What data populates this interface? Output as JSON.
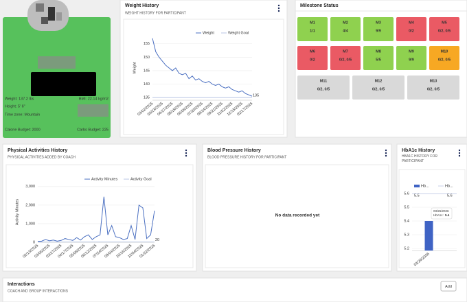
{
  "profile": {
    "weight": "Weight: 137.2 lbs",
    "bmi": "BMI: 22.14 kg/m2",
    "height": "Height: 5' 6\"",
    "timezone": "Time zone: Mountain",
    "calorie_budget": "Calorie Budget: 2000",
    "carbs_budget": "Carbs Budget: 225"
  },
  "milestones": {
    "title": "Milestone Status",
    "items": [
      {
        "name": "M1",
        "value": "1/1",
        "color": "#8fd14f"
      },
      {
        "name": "M2",
        "value": "4/4",
        "color": "#8fd14f"
      },
      {
        "name": "M3",
        "value": "9/9",
        "color": "#8fd14f"
      },
      {
        "name": "M4",
        "value": "0/2",
        "color": "#ea5a64"
      },
      {
        "name": "M5",
        "value": "0/2, 0/5",
        "color": "#ea5a64"
      },
      {
        "name": "M6",
        "value": "0/2",
        "color": "#ea5a64"
      },
      {
        "name": "M7",
        "value": "0/2, 0/5",
        "color": "#ea5a64"
      },
      {
        "name": "M8",
        "value": "5/5",
        "color": "#8fd14f"
      },
      {
        "name": "M9",
        "value": "9/9",
        "color": "#8fd14f"
      },
      {
        "name": "M10",
        "value": "0/2, 0/5",
        "color": "#f7a823"
      },
      {
        "name": "M11",
        "value": "0/2, 0/5",
        "color": "#d9d9d9"
      },
      {
        "name": "M12",
        "value": "0/2, 0/5",
        "color": "#d9d9d9"
      },
      {
        "name": "M13",
        "value": "0/2, 0/5",
        "color": "#d9d9d9"
      }
    ]
  },
  "blood_pressure": {
    "title": "Blood Pressure History",
    "subtitle": "BLOOD PRESSURE HISTORY FOR PARTICIPANT",
    "empty_message": "No data recorded yet"
  },
  "interactions": {
    "title": "Interactions",
    "subtitle": "COACH AND GROUP INTERACTIONS",
    "button": "Add"
  },
  "chart_data": [
    {
      "type": "line",
      "title": "Weight History",
      "subtitle": "WEIGHT HISTORY FOR PARTICIPANT",
      "ylabel": "Weight",
      "categories": [
        "03/02/2025",
        null,
        null,
        "03/23/2025",
        null,
        null,
        "04/27/2025",
        null,
        null,
        "05/18/2025",
        null,
        null,
        "06/08/2025",
        null,
        null,
        "07/20/2025",
        null,
        null,
        "08/24/2025",
        null,
        null,
        "09/21/2025",
        null,
        null,
        "11/02/2025",
        null,
        null,
        "12/15/2025",
        null,
        null,
        "02/17/2026"
      ],
      "series": [
        {
          "name": "Weight",
          "color": "#4a6fc1",
          "values": [
            157,
            152,
            150,
            148.5,
            147,
            146,
            145,
            146,
            144,
            143.5,
            144,
            142,
            143,
            141.5,
            142,
            141,
            140.5,
            141,
            140,
            139.5,
            140,
            139,
            138.5,
            139,
            138,
            137.5,
            137,
            137.5,
            136.5,
            136,
            135.5
          ]
        },
        {
          "name": "Weight Goal",
          "color": "#b9c6e4",
          "end_label": true,
          "values": [
            135,
            135,
            135,
            135,
            135,
            135,
            135,
            135,
            135,
            135,
            135,
            135,
            135,
            135,
            135,
            135,
            135,
            135,
            135,
            135,
            135,
            135,
            135,
            135,
            135,
            135,
            135,
            135,
            135,
            135,
            135
          ]
        }
      ],
      "ylim": [
        134,
        158
      ],
      "yticks": [
        135,
        140,
        145,
        150,
        155
      ],
      "grid": true
    },
    {
      "type": "line",
      "title": "Physical Activities History",
      "subtitle": "PHYSICAL ACTIVITIES ADDED BY COACH",
      "ylabel": "Activity Minutes",
      "categories": [
        "02/13/2025",
        null,
        null,
        "03/06/2025",
        null,
        null,
        "03/27/2025",
        null,
        null,
        "04/17/2025",
        null,
        null,
        "05/08/2025",
        null,
        null,
        "06/12/2025",
        null,
        null,
        "07/24/2025",
        null,
        null,
        "09/04/2025",
        null,
        null,
        "10/16/2025",
        null,
        null,
        "12/04/2025",
        null,
        null,
        "01/22/2026"
      ],
      "series": [
        {
          "name": "Activity Minutes",
          "color": "#4a6fc1",
          "values": [
            50,
            60,
            150,
            80,
            120,
            60,
            100,
            200,
            150,
            100,
            250,
            120,
            300,
            400,
            150,
            300,
            400,
            2450,
            400,
            900,
            300,
            250,
            150,
            200,
            900,
            150,
            2000,
            1850,
            200,
            400,
            1700
          ]
        },
        {
          "name": "Activity Goal",
          "color": "#b9c6e4",
          "end_label": true,
          "values": [
            20,
            20,
            20,
            20,
            20,
            20,
            20,
            20,
            20,
            20,
            20,
            20,
            20,
            20,
            20,
            20,
            20,
            20,
            20,
            20,
            20,
            20,
            20,
            20,
            20,
            20,
            20,
            20,
            20,
            20,
            20
          ]
        }
      ],
      "ylim": [
        0,
        3250
      ],
      "yticks": [
        0,
        {
          "value": 1000,
          "label": "1,000"
        },
        {
          "value": 2000,
          "label": "2,000"
        },
        {
          "value": 3000,
          "label": "3,000"
        }
      ],
      "grid": true
    },
    {
      "type": "bar",
      "title": "HbA1c History",
      "subtitle": "HBA1C HISTORY FOR PARTICIPANT",
      "categories": [
        "03/26/2026"
      ],
      "series": [
        {
          "name": "Hb...",
          "mark": "bar",
          "color": "#3f63c4",
          "values": [
            5.4
          ]
        },
        {
          "name": "Hb...",
          "mark": "line",
          "color": "#c9d2e8",
          "end_label": true,
          "values": [
            5.6
          ]
        }
      ],
      "annotations": [
        "5.5"
      ],
      "tooltip_label": "HbA1c:",
      "ylim": [
        5.185,
        5.635
      ],
      "yticks": [
        5.2,
        5.3,
        5.4,
        5.5,
        5.6
      ],
      "grid": true
    }
  ]
}
